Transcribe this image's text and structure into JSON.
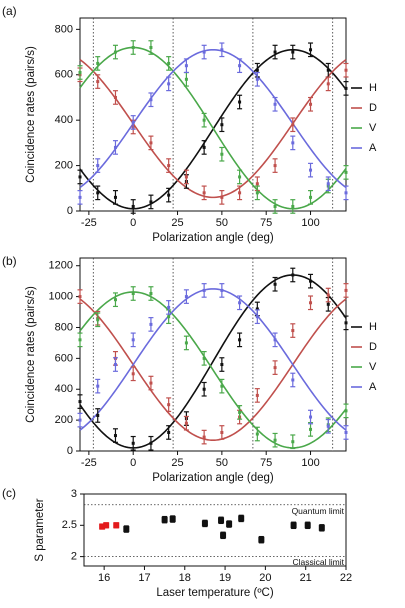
{
  "panels": [
    {
      "label": "(a)",
      "chart_data": {
        "type": "scatter",
        "xlabel": "Polarization angle (deg)",
        "ylabel": "Coincidence rates (pairs/s)",
        "xlim": [
          -30,
          120
        ],
        "ylim": [
          0,
          850
        ],
        "xticks": [
          -25,
          0,
          25,
          50,
          75,
          100
        ],
        "yticks": [
          0,
          200,
          400,
          600,
          800
        ],
        "vlines": [
          -22.5,
          22.5,
          67.5,
          112.5
        ],
        "legend": [
          "H",
          "D",
          "V",
          "A"
        ],
        "legend_position": "right",
        "fit": {
          "offset": [
            10,
            60,
            10,
            60
          ],
          "amplitude": [
            700,
            650,
            710,
            650
          ],
          "peak": [
            90,
            135,
            0,
            45
          ]
        },
        "series": [
          {
            "name": "H",
            "color": "#111111",
            "x": [
              -30,
              -20,
              -10,
              0,
              10,
              20,
              30,
              40,
              50,
              60,
              70,
              80,
              90,
              100,
              110,
              120
            ],
            "y": [
              150,
              80,
              60,
              20,
              40,
              70,
              130,
              280,
              380,
              480,
              620,
              700,
              700,
              710,
              620,
              540
            ]
          },
          {
            "name": "D",
            "color": "#c0504d",
            "x": [
              -30,
              -20,
              -10,
              0,
              10,
              20,
              30,
              40,
              50,
              60,
              70,
              80,
              90,
              100,
              110,
              120
            ],
            "y": [
              600,
              570,
              500,
              370,
              300,
              200,
              150,
              80,
              60,
              80,
              120,
              200,
              380,
              470,
              560,
              620
            ]
          },
          {
            "name": "V",
            "color": "#4aa84a",
            "x": [
              -30,
              -20,
              -10,
              0,
              10,
              20,
              30,
              40,
              50,
              60,
              70,
              80,
              90,
              100,
              110,
              120
            ],
            "y": [
              610,
              650,
              700,
              720,
              720,
              650,
              580,
              400,
              250,
              150,
              80,
              20,
              20,
              60,
              110,
              170
            ]
          },
          {
            "name": "A",
            "color": "#6b6bdd",
            "x": [
              -30,
              -20,
              -10,
              0,
              10,
              20,
              30,
              40,
              50,
              60,
              70,
              80,
              90,
              100,
              110,
              120
            ],
            "y": [
              60,
              200,
              280,
              390,
              490,
              560,
              640,
              700,
              710,
              640,
              580,
              470,
              300,
              180,
              120,
              80
            ]
          }
        ]
      }
    },
    {
      "label": "(b)",
      "chart_data": {
        "type": "scatter",
        "xlabel": "Polarization angle (deg)",
        "ylabel": "Coincidence rates (pairs/s)",
        "xlim": [
          -30,
          120
        ],
        "ylim": [
          0,
          1250
        ],
        "xticks": [
          -25,
          0,
          25,
          50,
          75,
          100
        ],
        "yticks": [
          0,
          200,
          400,
          600,
          800,
          1000,
          1200
        ],
        "vlines": [
          -22.5,
          22.5,
          67.5,
          112.5
        ],
        "legend": [
          "H",
          "D",
          "V",
          "A"
        ],
        "legend_position": "right",
        "fit": {
          "offset": [
            20,
            70,
            20,
            70
          ],
          "amplitude": [
            1120,
            980,
            1010,
            980
          ],
          "peak": [
            90,
            135,
            0,
            45
          ]
        },
        "series": [
          {
            "name": "H",
            "color": "#111111",
            "x": [
              -30,
              -20,
              -10,
              0,
              10,
              20,
              30,
              40,
              50,
              60,
              70,
              80,
              90,
              100,
              110,
              120
            ],
            "y": [
              320,
              230,
              100,
              50,
              50,
              120,
              210,
              400,
              560,
              720,
              920,
              1080,
              1140,
              1100,
              950,
              830
            ]
          },
          {
            "name": "D",
            "color": "#c0504d",
            "x": [
              -30,
              -20,
              -10,
              0,
              10,
              20,
              30,
              40,
              50,
              60,
              70,
              80,
              90,
              100,
              110,
              120
            ],
            "y": [
              1000,
              860,
              600,
              500,
              440,
              300,
              180,
              90,
              120,
              220,
              360,
              540,
              780,
              960,
              1010,
              1040
            ]
          },
          {
            "name": "V",
            "color": "#4aa84a",
            "x": [
              -30,
              -20,
              -10,
              0,
              10,
              20,
              30,
              40,
              50,
              60,
              70,
              80,
              90,
              100,
              110,
              120
            ],
            "y": [
              720,
              850,
              980,
              1020,
              1020,
              870,
              700,
              600,
              420,
              250,
              110,
              70,
              60,
              140,
              170,
              260
            ]
          },
          {
            "name": "A",
            "color": "#6b6bdd",
            "x": [
              -30,
              -20,
              -10,
              0,
              10,
              20,
              30,
              40,
              50,
              60,
              70,
              80,
              90,
              100,
              110,
              120
            ],
            "y": [
              200,
              420,
              560,
              720,
              820,
              930,
              1000,
              1040,
              1040,
              960,
              870,
              720,
              460,
              220,
              160,
              120
            ]
          }
        ]
      }
    },
    {
      "label": "(c)",
      "chart_data": {
        "type": "scatter",
        "xlabel": "Laser temperature (ºC)",
        "ylabel": "S parameter",
        "xlim": [
          15.5,
          22
        ],
        "ylim": [
          1.85,
          3
        ],
        "xticks": [
          16,
          17,
          18,
          19,
          20,
          21,
          22
        ],
        "yticks": [
          2,
          2.5,
          3
        ],
        "hlines": [
          {
            "y": 2.828,
            "label": "Quantum limit"
          },
          {
            "y": 2.0,
            "label": "Classical limit"
          }
        ],
        "series": [
          {
            "name": "",
            "color": "#e31a1c",
            "x": [
              15.95,
              16.05,
              16.3
            ],
            "y": [
              2.48,
              2.5,
              2.5
            ],
            "err": [
              0.04,
              0.04,
              0.04
            ]
          },
          {
            "name": "",
            "color": "#111111",
            "x": [
              16.55,
              17.5,
              17.7,
              18.5,
              18.9,
              18.95,
              19.1,
              19.4,
              19.9,
              20.7,
              21.05,
              21.4
            ],
            "y": [
              2.44,
              2.59,
              2.6,
              2.53,
              2.58,
              2.34,
              2.52,
              2.61,
              2.27,
              2.5,
              2.5,
              2.46
            ],
            "err": [
              0.05,
              0.05,
              0.05,
              0.05,
              0.05,
              0.05,
              0.05,
              0.05,
              0.05,
              0.05,
              0.05,
              0.05
            ]
          }
        ]
      }
    }
  ]
}
